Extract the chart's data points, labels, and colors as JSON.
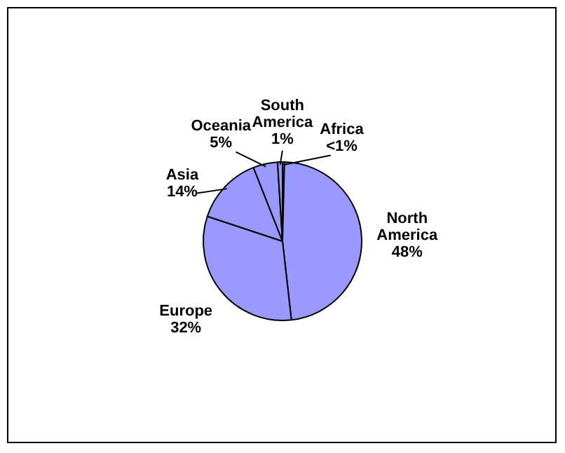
{
  "chart_data": {
    "type": "pie",
    "categories": [
      "Africa",
      "North America",
      "Europe",
      "Asia",
      "Oceania",
      "South America"
    ],
    "values": [
      0.4,
      48,
      32,
      14,
      5,
      1
    ],
    "value_labels": [
      "<1%",
      "48%",
      "32%",
      "14%",
      "5%",
      "1%"
    ],
    "colors": [
      "#9999ff",
      "#9999ff",
      "#9999ff",
      "#9999ff",
      "#9999ff",
      "#9999ff"
    ],
    "legend": false
  }
}
